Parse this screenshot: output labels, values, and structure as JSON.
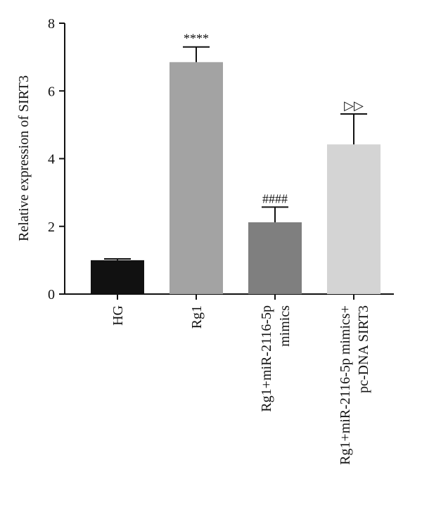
{
  "chart_data": {
    "type": "bar",
    "title": "",
    "xlabel": "",
    "ylabel": "Relative expression of SIRT3",
    "ylim": [
      0,
      8
    ],
    "yticks": [
      0,
      2,
      4,
      6,
      8
    ],
    "grid": false,
    "categories": [
      [
        "HG"
      ],
      [
        "Rg1"
      ],
      [
        "Rg1+miR-2116-5p",
        "mimics"
      ],
      [
        "Rg1+miR-2116-5p mimics+",
        "pc-DNA SIRT3"
      ]
    ],
    "values": [
      1.0,
      6.85,
      2.12,
      4.42
    ],
    "errors": [
      0.04,
      0.45,
      0.45,
      0.9
    ],
    "annotations": [
      "",
      "****",
      "####",
      "▷▷"
    ],
    "colors": [
      "#111111",
      "#a3a3a3",
      "#7f7f7f",
      "#d4d4d4"
    ]
  }
}
